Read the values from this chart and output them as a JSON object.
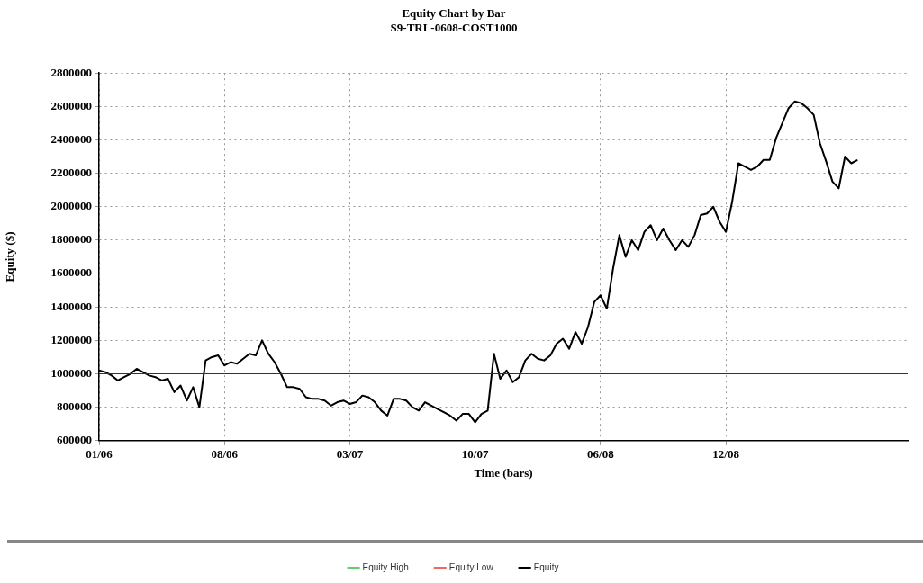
{
  "chart_data": {
    "type": "line",
    "title": "Equity Chart by Bar",
    "subtitle": "S9-TRL-0608-COST1000",
    "xlabel": "Time (bars)",
    "ylabel": "Equity ($)",
    "categories": [
      "01/06",
      null,
      null,
      null,
      null,
      null,
      null,
      null,
      null,
      null,
      null,
      null,
      null,
      null,
      null,
      null,
      null,
      null,
      null,
      null,
      "08/06",
      null,
      null,
      null,
      null,
      null,
      null,
      null,
      null,
      null,
      null,
      null,
      null,
      null,
      null,
      null,
      null,
      null,
      null,
      null,
      "03/07",
      null,
      null,
      null,
      null,
      null,
      null,
      null,
      null,
      null,
      null,
      null,
      null,
      null,
      null,
      null,
      null,
      null,
      null,
      null,
      "10/07",
      null,
      null,
      null,
      null,
      null,
      null,
      null,
      null,
      null,
      null,
      null,
      null,
      null,
      null,
      null,
      null,
      null,
      null,
      null,
      "06/08",
      null,
      null,
      null,
      null,
      null,
      null,
      null,
      null,
      null,
      null,
      null,
      null,
      null,
      null,
      null,
      null,
      null,
      null,
      null,
      "12/08",
      null,
      null,
      null,
      null,
      null,
      null,
      null,
      null,
      null,
      null,
      null,
      null,
      null,
      null,
      null,
      null,
      null,
      null,
      null,
      null,
      null,
      null,
      null,
      null,
      null,
      null,
      null,
      null,
      null
    ],
    "ylim": [
      600000,
      2800000
    ],
    "yticks": [
      600000,
      800000,
      1000000,
      1200000,
      1400000,
      1600000,
      1800000,
      2000000,
      2200000,
      2400000,
      2600000,
      2800000
    ],
    "grid": true,
    "legend": "bottom",
    "ref_lines": [
      {
        "axis": "y",
        "value": 1000000,
        "color": "#333333"
      }
    ],
    "series": [
      {
        "name": "Equity High",
        "color": "#66cc66",
        "values": [
          null,
          null,
          null,
          null,
          null,
          null,
          null,
          null,
          null,
          null,
          null,
          null,
          null,
          null,
          null,
          null,
          null,
          null,
          null,
          null,
          null,
          null,
          null,
          null,
          null,
          null,
          null,
          null,
          null,
          null,
          null,
          null,
          null,
          null,
          null,
          null,
          null,
          null,
          null,
          null,
          null,
          null,
          null,
          null,
          null,
          null,
          null,
          null,
          null,
          null,
          null,
          null,
          null,
          null,
          null,
          null,
          null,
          null,
          null,
          null,
          null,
          null,
          null,
          null,
          null,
          null,
          null,
          null,
          null,
          null,
          null,
          null,
          null,
          null,
          null,
          null,
          null,
          null,
          null,
          null,
          null,
          null,
          null,
          null,
          null,
          null,
          null,
          null,
          null,
          null,
          null,
          null,
          null,
          null,
          null,
          null,
          null,
          null,
          null,
          null,
          null,
          null,
          null,
          null,
          null,
          null,
          null,
          null,
          null,
          null,
          null,
          null,
          null,
          null,
          null,
          null,
          null,
          null,
          null,
          null,
          null,
          null,
          null,
          null,
          null,
          null,
          null,
          null,
          null,
          null
        ]
      },
      {
        "name": "Equity Low",
        "color": "#ee6666",
        "values": [
          null,
          null,
          null,
          null,
          null,
          null,
          null,
          null,
          null,
          null,
          null,
          null,
          null,
          null,
          null,
          null,
          null,
          null,
          null,
          null,
          null,
          null,
          null,
          null,
          null,
          null,
          null,
          null,
          null,
          null,
          null,
          null,
          null,
          null,
          null,
          null,
          null,
          null,
          null,
          null,
          null,
          null,
          null,
          null,
          null,
          null,
          null,
          null,
          null,
          null,
          null,
          null,
          null,
          null,
          null,
          null,
          null,
          null,
          null,
          null,
          null,
          null,
          null,
          null,
          null,
          null,
          null,
          null,
          null,
          null,
          null,
          null,
          null,
          null,
          null,
          null,
          null,
          null,
          null,
          null,
          null,
          null,
          null,
          null,
          null,
          null,
          null,
          null,
          null,
          null,
          null,
          null,
          null,
          null,
          null,
          null,
          null,
          null,
          null,
          null,
          null,
          null,
          null,
          null,
          null,
          null,
          null,
          null,
          null,
          null,
          null,
          null,
          null,
          null,
          null,
          null,
          null,
          null,
          null,
          null,
          null,
          null,
          null,
          null,
          null,
          null,
          null,
          null,
          null,
          null
        ]
      },
      {
        "name": "Equity",
        "color": "#000000",
        "values": [
          1020000,
          1010000,
          990000,
          960000,
          980000,
          1000000,
          1030000,
          1010000,
          990000,
          980000,
          960000,
          970000,
          890000,
          930000,
          840000,
          920000,
          800000,
          1080000,
          1100000,
          1110000,
          1050000,
          1070000,
          1060000,
          1090000,
          1120000,
          1110000,
          1200000,
          1120000,
          1070000,
          1000000,
          920000,
          920000,
          910000,
          860000,
          850000,
          850000,
          840000,
          810000,
          830000,
          840000,
          820000,
          830000,
          870000,
          860000,
          830000,
          780000,
          750000,
          850000,
          850000,
          840000,
          800000,
          780000,
          830000,
          810000,
          790000,
          770000,
          750000,
          720000,
          760000,
          760000,
          710000,
          760000,
          780000,
          1120000,
          970000,
          1020000,
          950000,
          980000,
          1080000,
          1120000,
          1090000,
          1080000,
          1110000,
          1180000,
          1210000,
          1150000,
          1250000,
          1180000,
          1280000,
          1430000,
          1470000,
          1390000,
          1630000,
          1830000,
          1700000,
          1800000,
          1740000,
          1850000,
          1890000,
          1800000,
          1870000,
          1800000,
          1740000,
          1800000,
          1760000,
          1830000,
          1950000,
          1960000,
          2000000,
          1910000,
          1850000,
          2030000,
          2260000,
          2240000,
          2220000,
          2240000,
          2280000,
          2280000,
          2410000,
          2500000,
          2590000,
          2630000,
          2620000,
          2590000,
          2550000,
          2380000,
          2270000,
          2150000,
          2110000,
          2300000,
          2260000,
          2280000,
          null,
          null,
          null,
          null,
          null,
          null,
          null,
          null
        ]
      }
    ]
  }
}
